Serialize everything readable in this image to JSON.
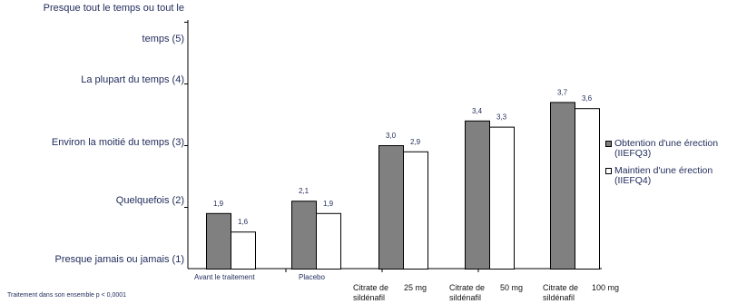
{
  "chart_data": {
    "type": "bar",
    "y_tick_labels": [
      {
        "value": 1,
        "label": "Presque jamais ou jamais (1)"
      },
      {
        "value": 2,
        "label": "Quelquefois (2)"
      },
      {
        "value": 3,
        "label": "Environ la moitié du temps (3)"
      },
      {
        "value": 4,
        "label": "La plupart du temps (4)"
      },
      {
        "value": 5,
        "label_line1": "Presque tout le temps ou tout le",
        "label_line2": "temps (5)"
      }
    ],
    "ylim": [
      1,
      5
    ],
    "categories": [
      {
        "line1": "Avant le traitement",
        "line2": "",
        "dose": ""
      },
      {
        "line1": "Placebo",
        "line2": "",
        "dose": ""
      },
      {
        "line1": "Citrate de",
        "line2": "sildénafil",
        "dose": "25 mg"
      },
      {
        "line1": "Citrate de",
        "line2": "sildénafil",
        "dose": "50 mg"
      },
      {
        "line1": "Citrate de",
        "line2": "sildénafil",
        "dose": "100 mg"
      }
    ],
    "series": [
      {
        "name_line1": "Obtention d'une érection",
        "name_line2": "(IIEFQ3)",
        "color": "#808080",
        "values": [
          1.9,
          2.1,
          3.0,
          3.4,
          3.7
        ],
        "labels": [
          "1,9",
          "2,1",
          "3,0",
          "3,4",
          "3,7"
        ]
      },
      {
        "name_line1": "Maintien d'une érection",
        "name_line2": "(IIEFQ4)",
        "color": "#ffffff",
        "values": [
          1.6,
          1.9,
          2.9,
          3.3,
          3.6
        ],
        "labels": [
          "1,6",
          "1,9",
          "2,9",
          "3,3",
          "3,6"
        ]
      }
    ],
    "footnote": "Traitement dans son ensemble p < 0,0001"
  }
}
